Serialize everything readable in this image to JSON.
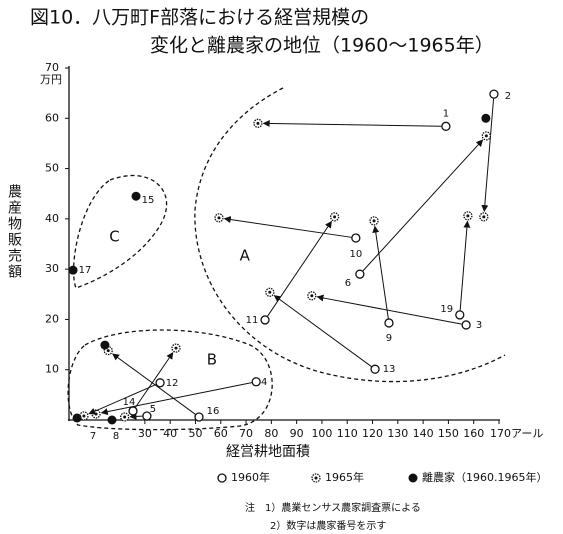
{
  "title_line1": "図10．八万町F部落における経営規模の",
  "title_line2": "変化と離農家の地位（1960～1965年）",
  "chart_data": {
    "type": "scatter",
    "x_label": "経営耕地面積",
    "y_label": "農産物販売額",
    "y_unit": "万円",
    "xlim": [
      0,
      170
    ],
    "ylim": [
      0,
      70
    ],
    "xticks": [
      30,
      40,
      50,
      60,
      70,
      80,
      90,
      100,
      110,
      120,
      130,
      140,
      150,
      160,
      {
        "value": 170,
        "label": "170アール"
      }
    ],
    "yticks": [
      10,
      20,
      30,
      40,
      50,
      60,
      70
    ],
    "households": [
      {
        "label": "1",
        "x1960": 149,
        "y1960": 58.4,
        "x1965": 74.7,
        "y1965": 59
      },
      {
        "label": "2",
        "x1960": 168,
        "y1960": 64.8,
        "x1965": 164,
        "y1965": 40.4
      },
      {
        "label": "3",
        "x1960": 157,
        "y1960": 18.9,
        "x1965": 96,
        "y1965": 24.7
      },
      {
        "label": "4",
        "x1960": 74,
        "y1960": 7.6,
        "x1965": 10.7,
        "y1965": 1.2
      },
      {
        "label": "5",
        "x1960": 30.8,
        "y1960": 0.8,
        "x1965": 22,
        "y1965": 0.6
      },
      {
        "label": "6",
        "x1960": 115,
        "y1960": 29,
        "x1965": 165,
        "y1965": 56.5
      },
      {
        "label": "9",
        "x1960": 126.5,
        "y1960": 19.3,
        "x1965": 120.6,
        "y1965": 39.6
      },
      {
        "label": "10",
        "x1960": 113.4,
        "y1960": 36.2,
        "x1965": 59.3,
        "y1965": 40.2
      },
      {
        "label": "11",
        "x1960": 77.5,
        "y1960": 19.9,
        "x1965": 105,
        "y1965": 40.4
      },
      {
        "label": "12",
        "x1960": 36,
        "y1960": 7.4,
        "x1965": 5.9,
        "y1965": 0.8
      },
      {
        "label": "13",
        "x1960": 121,
        "y1960": 10.1,
        "x1965": 79.4,
        "y1965": 25.4
      },
      {
        "label": "14",
        "x1960": 25.3,
        "y1960": 1.8,
        "x1965": 42.3,
        "y1965": 14.3
      },
      {
        "label": "16",
        "x1960": 51.4,
        "y1960": 0.6,
        "x1965": 15.5,
        "y1965": 13.8
      },
      {
        "label": "19",
        "x1960": 154.5,
        "y1960": 20.9,
        "x1965": 157.7,
        "y1965": 40.6
      }
    ],
    "separated": [
      {
        "label": "15",
        "x": 26.5,
        "y": 44.5
      },
      {
        "label": "17",
        "x": 1.6,
        "y": 29.8
      },
      {
        "label": "7",
        "x": 3.2,
        "y": 0.4
      },
      {
        "label": "8",
        "x": 17,
        "y": 0
      },
      {
        "label": null,
        "x": 164.8,
        "y": 60
      },
      {
        "label": null,
        "x": 14.2,
        "y": 14.9
      }
    ],
    "groups": [
      {
        "label": "A",
        "x": 69.5,
        "y": 32.6
      },
      {
        "label": "B",
        "x": 56.5,
        "y": 11.9
      },
      {
        "label": "C",
        "x": 18,
        "y": 36.4
      }
    ],
    "legend": [
      "1960年",
      "1965年",
      "離農家（1960.1965年）"
    ]
  },
  "notes": [
    "注　1）農業センサス農家調査票による",
    "2）数字は農家番号を示す"
  ]
}
